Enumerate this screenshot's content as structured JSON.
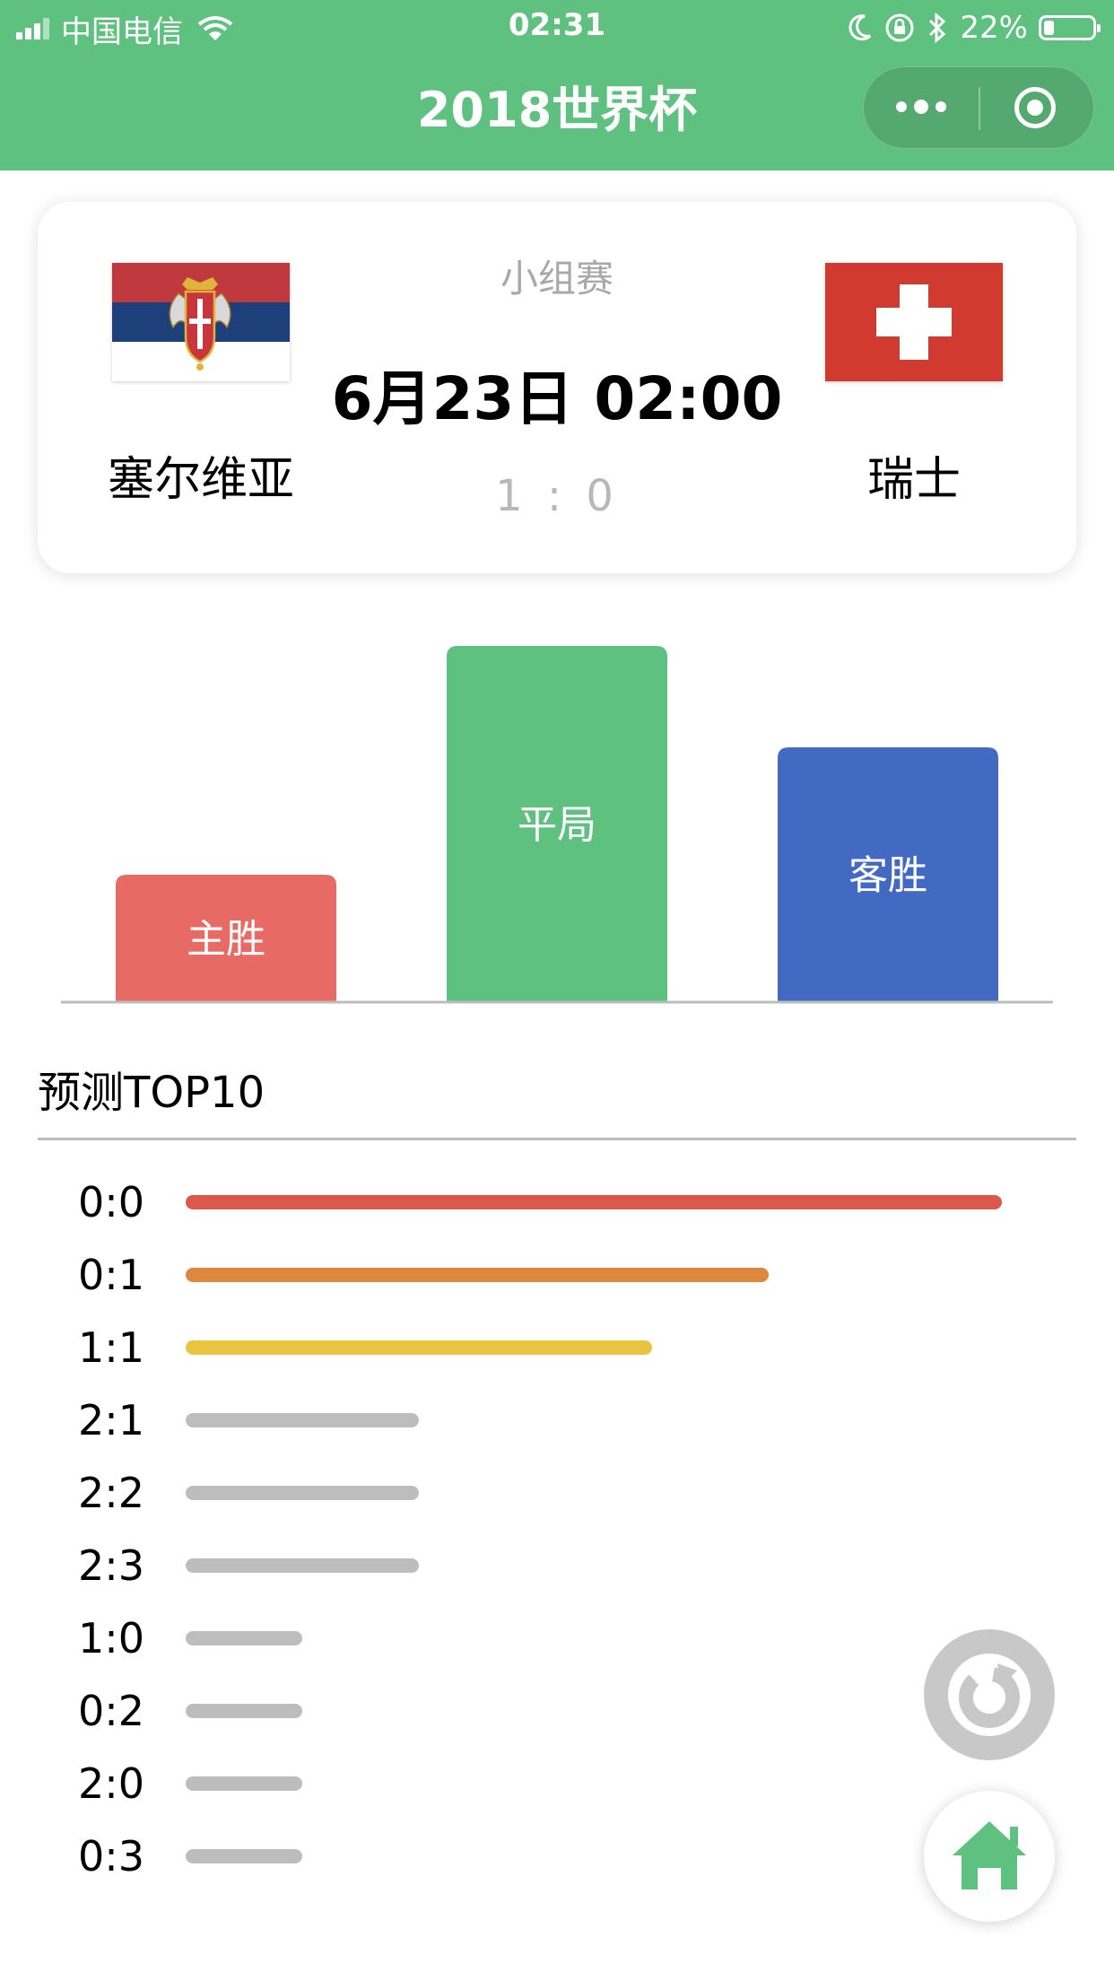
{
  "status_bar": {
    "carrier": "中国电信",
    "time": "02:31",
    "battery_text": "22%",
    "battery_level": 0.22,
    "icons": [
      "signal-icon",
      "wifi-icon",
      "moon-icon",
      "orientation-lock-icon",
      "bluetooth-icon",
      "battery-icon"
    ]
  },
  "nav": {
    "title": "2018世界杯",
    "capsule_icons": [
      "more-icon",
      "close-mini-program-icon"
    ]
  },
  "match": {
    "stage": "小组赛",
    "datetime": "6月23日 02:00",
    "score": "1 : 0",
    "home": {
      "name": "塞尔维亚",
      "flag": "serbia-flag"
    },
    "away": {
      "name": "瑞士",
      "flag": "switzerland-flag"
    }
  },
  "chart_data": {
    "type": "bar",
    "categories": [
      "主胜",
      "平局",
      "客胜"
    ],
    "values": [
      1.0,
      2.8,
      2.0
    ],
    "colors": [
      "#e86a64",
      "#5fc17f",
      "#436ac3"
    ],
    "title": "",
    "xlabel": "",
    "ylabel": "",
    "ylim": [
      0,
      2.8
    ]
  },
  "predictions": {
    "title": "预测TOP10",
    "items": [
      {
        "score": "0:0",
        "value": 7,
        "color": "#dc584a"
      },
      {
        "score": "0:1",
        "value": 5,
        "color": "#de873d"
      },
      {
        "score": "1:1",
        "value": 4,
        "color": "#e9c441"
      },
      {
        "score": "2:1",
        "value": 2,
        "color": "#bdbdbd"
      },
      {
        "score": "2:2",
        "value": 2,
        "color": "#bdbdbd"
      },
      {
        "score": "2:3",
        "value": 2,
        "color": "#bdbdbd"
      },
      {
        "score": "1:0",
        "value": 1,
        "color": "#bdbdbd"
      },
      {
        "score": "0:2",
        "value": 1,
        "color": "#bdbdbd"
      },
      {
        "score": "2:0",
        "value": 1,
        "color": "#bdbdbd"
      },
      {
        "score": "0:3",
        "value": 1,
        "color": "#bdbdbd"
      }
    ]
  },
  "actions": {
    "refresh_icon": "refresh-icon",
    "home_icon": "home-icon",
    "accent": "#5fc17f"
  }
}
